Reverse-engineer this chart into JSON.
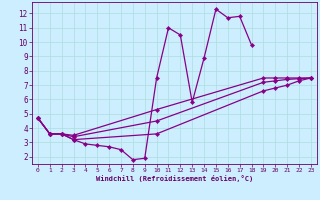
{
  "xlabel": "Windchill (Refroidissement éolien,°C)",
  "xlim": [
    -0.5,
    23.5
  ],
  "ylim": [
    1.5,
    12.8
  ],
  "xticks": [
    0,
    1,
    2,
    3,
    4,
    5,
    6,
    7,
    8,
    9,
    10,
    11,
    12,
    13,
    14,
    15,
    16,
    17,
    18,
    19,
    20,
    21,
    22,
    23
  ],
  "yticks": [
    2,
    3,
    4,
    5,
    6,
    7,
    8,
    9,
    10,
    11,
    12
  ],
  "line_color": "#880088",
  "bg_color": "#cceeff",
  "grid_color": "#aadddd",
  "series": [
    {
      "x": [
        0,
        1,
        2,
        3,
        4,
        5,
        6,
        7,
        8,
        9,
        10,
        11,
        12,
        13,
        14,
        15,
        16,
        17,
        18
      ],
      "y": [
        4.7,
        3.6,
        3.6,
        3.2,
        2.9,
        2.8,
        2.7,
        2.5,
        1.8,
        1.9,
        7.5,
        11.0,
        10.5,
        5.8,
        8.9,
        12.3,
        11.7,
        11.8,
        9.8
      ]
    },
    {
      "x": [
        0,
        1,
        2,
        3,
        10,
        19,
        20,
        21,
        22,
        23
      ],
      "y": [
        4.7,
        3.6,
        3.6,
        3.5,
        5.3,
        7.5,
        7.5,
        7.5,
        7.5,
        7.5
      ]
    },
    {
      "x": [
        0,
        1,
        2,
        3,
        10,
        19,
        20,
        21,
        22,
        23
      ],
      "y": [
        4.7,
        3.6,
        3.6,
        3.4,
        4.5,
        7.2,
        7.3,
        7.4,
        7.45,
        7.5
      ]
    },
    {
      "x": [
        0,
        1,
        2,
        3,
        10,
        19,
        20,
        21,
        22,
        23
      ],
      "y": [
        4.7,
        3.6,
        3.6,
        3.2,
        3.6,
        6.6,
        6.8,
        7.0,
        7.3,
        7.5
      ]
    }
  ]
}
